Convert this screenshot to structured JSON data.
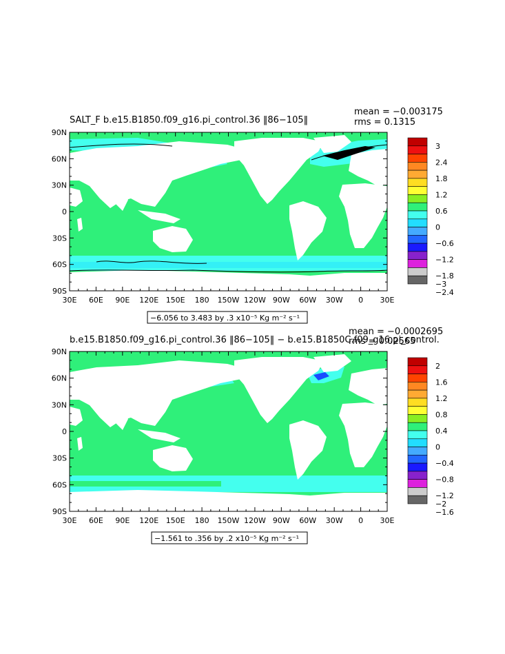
{
  "chart_data": [
    {
      "type": "heatmap",
      "title": "SALT_F b.e15.B1850.f09_g16.pi_control.36 ‖86−105‖",
      "stats": [
        "mean = −0.003175",
        "rms = 0.1315"
      ],
      "y_ticks": [
        "90N",
        "60N",
        "30N",
        "0",
        "30S",
        "60S",
        "90S"
      ],
      "x_ticks": [
        "30E",
        "60E",
        "90E",
        "120E",
        "150E",
        "180",
        "150W",
        "120W",
        "90W",
        "60W",
        "30W",
        "0",
        "30E"
      ],
      "colorbar_labels": [
        "3",
        "2.4",
        "1.8",
        "1.2",
        "0.6",
        "0",
        "−0.6",
        "−1.2",
        "−1.8",
        "−2.4",
        "−3"
      ],
      "range_note": "−6.056 to 3.483 by .3 x10⁻⁵ Kg m⁻² s⁻¹",
      "colors": {
        "ocean_main": "#2ff07a",
        "southern_band": "#44ffee",
        "north_atlantic": "#44ffee",
        "contour": "#000000"
      }
    },
    {
      "type": "heatmap",
      "title": "b.e15.B1850.f09_g16.pi_control.36 ‖86−105‖ − b.e15.B1850C.f09_g16.pi_control.",
      "stats": [
        "mean = −0.0002695",
        "rms = 0.02565"
      ],
      "y_ticks": [
        "90N",
        "60N",
        "30N",
        "0",
        "30S",
        "60S",
        "90S"
      ],
      "x_ticks": [
        "30E",
        "60E",
        "90E",
        "120E",
        "150E",
        "180",
        "150W",
        "120W",
        "90W",
        "60W",
        "30W",
        "0",
        "30E"
      ],
      "colorbar_labels": [
        "2",
        "1.6",
        "1.2",
        "0.8",
        "0.4",
        "0",
        "−0.4",
        "−0.8",
        "−1.2",
        "−1.6",
        "−2"
      ],
      "range_note": "−1.561 to .356 by .2 x10⁻⁵ Kg m⁻² s⁻¹",
      "colors": {
        "ocean_main": "#2ff07a",
        "southern_band": "#44ffee",
        "north_atlantic": "#44ffee",
        "contour": "#1a4cff"
      }
    }
  ],
  "colorbar_colors": [
    "#c00000",
    "#ee1111",
    "#ff4400",
    "#ff8822",
    "#ffaa33",
    "#ffdd22",
    "#ffff33",
    "#88ee22",
    "#2ff07a",
    "#44ffee",
    "#22ddff",
    "#44aaff",
    "#2266ff",
    "#1a1aff",
    "#8822cc",
    "#dd22dd",
    "#cccccc",
    "#666666"
  ]
}
